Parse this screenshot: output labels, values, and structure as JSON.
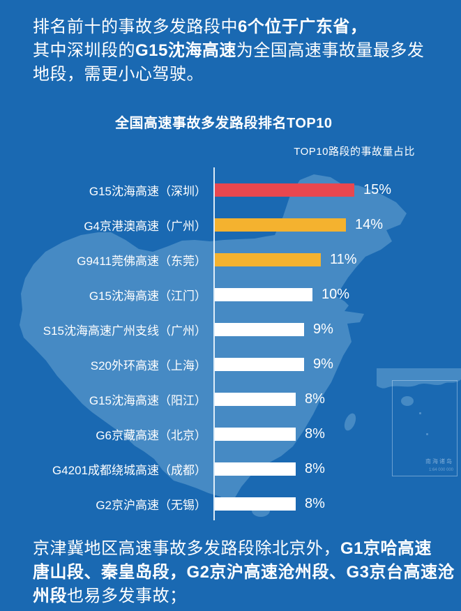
{
  "colors": {
    "background": "#1a69b2",
    "map_silhouette": "#4a8dc6",
    "bar_red": "#e8474f",
    "bar_orange": "#f4b22f",
    "bar_white": "#ffffff",
    "text": "#ffffff"
  },
  "intro": {
    "lines": [
      {
        "parts": [
          {
            "text": "排名前十的事故多发路段中",
            "bold": false
          },
          {
            "text": "6个位于广东省，",
            "bold": true
          }
        ]
      },
      {
        "parts": [
          {
            "text": "其中深圳段的",
            "bold": false
          },
          {
            "text": "G15沈海高速",
            "bold": true
          },
          {
            "text": "为全国高速事故量最多发",
            "bold": false
          }
        ]
      },
      {
        "parts": [
          {
            "text": "地段，需更小心驾驶。",
            "bold": false
          }
        ]
      }
    ]
  },
  "chart_data": {
    "type": "bar",
    "orientation": "horizontal",
    "title": "全国高速事故多发路段排名TOP10",
    "value_axis_label": "TOP10路段的事故量占比",
    "unit": "%",
    "grid": false,
    "legend": "none",
    "categories": [
      "G15沈海高速（深圳）",
      "G4京港澳高速（广州）",
      "G9411莞佛高速（东莞）",
      "G15沈海高速（江门）",
      "S15沈海高速广州支线（广州）",
      "S20外环高速（上海）",
      "G15沈海高速（阳江）",
      "G6京藏高速（北京）",
      "G4201成都绕城高速（成都）",
      "G2京沪高速（无锡）"
    ],
    "values": [
      15,
      14,
      11,
      10,
      9,
      9,
      8,
      8,
      8,
      8
    ],
    "value_labels": [
      "15%",
      "14%",
      "11%",
      "10%",
      "9%",
      "9%",
      "8%",
      "8%",
      "8%",
      "8%"
    ],
    "bar_colors": [
      "#e8474f",
      "#f4b22f",
      "#f4b22f",
      "#ffffff",
      "#ffffff",
      "#ffffff",
      "#ffffff",
      "#ffffff",
      "#ffffff",
      "#ffffff"
    ]
  },
  "map_inset": {
    "label": "南海诸岛",
    "scale": "1:64 000 000"
  },
  "footer": {
    "lines": [
      {
        "parts": [
          {
            "text": "京津冀地区高速事故多发路段除北京外，",
            "bold": false
          },
          {
            "text": "G1京哈高速",
            "bold": true
          }
        ]
      },
      {
        "parts": [
          {
            "text": "唐山段、秦皇岛段，G2京沪高速沧州段、G3京台高速沧",
            "bold": true
          }
        ]
      },
      {
        "parts": [
          {
            "text": "州段",
            "bold": true
          },
          {
            "text": "也易多发事故；",
            "bold": false
          }
        ]
      }
    ]
  }
}
